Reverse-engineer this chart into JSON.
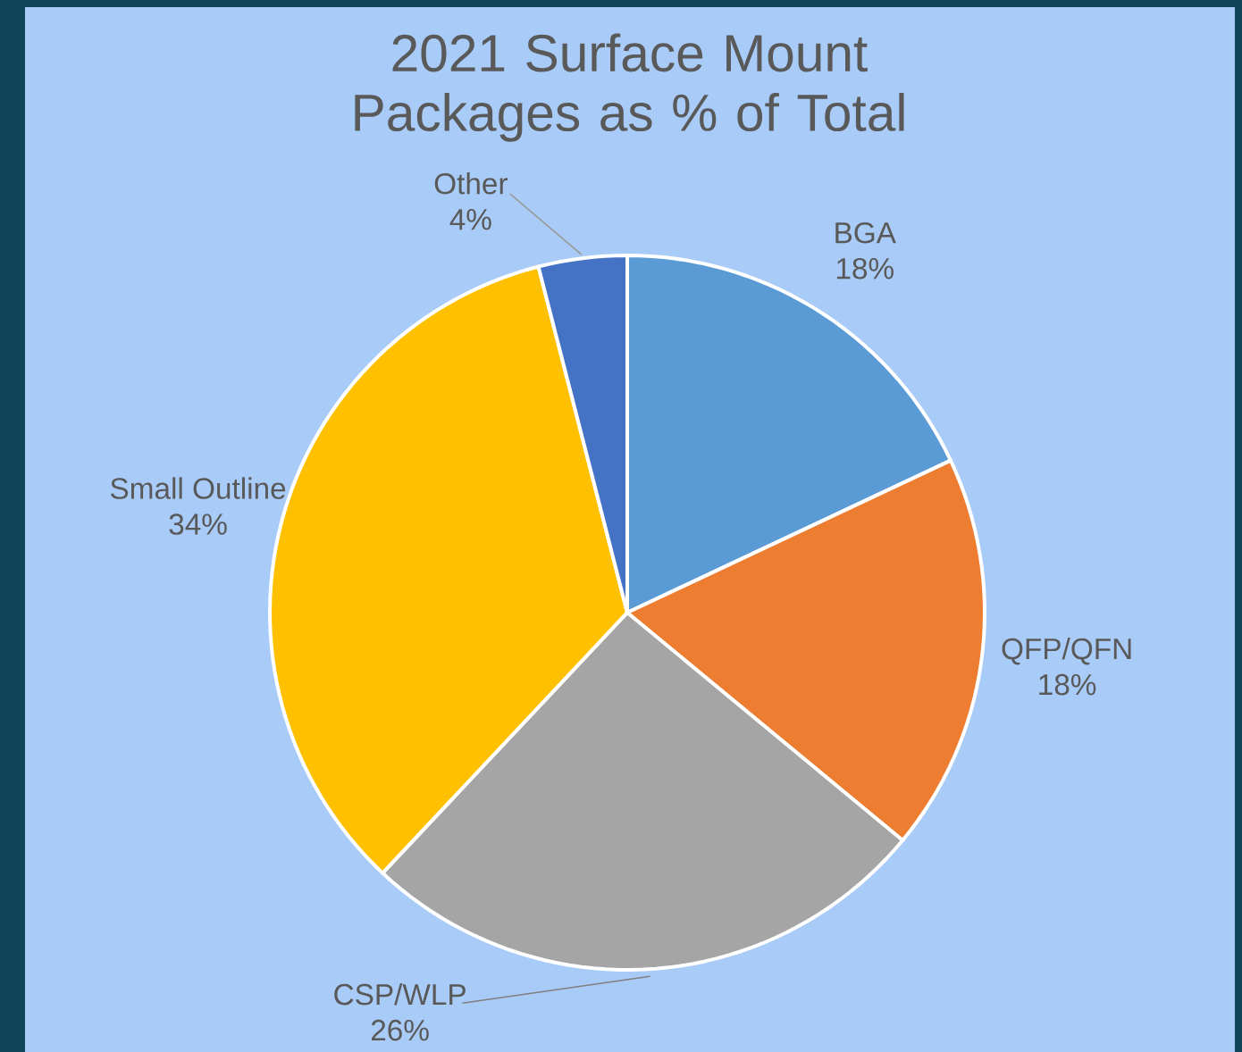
{
  "chart_data": {
    "type": "pie",
    "title": "2021 Surface Mount Packages as % of Total",
    "categories": [
      "BGA",
      "QFP/QFN",
      "CSP/WLP",
      "Small Outline",
      "Other"
    ],
    "values": [
      18,
      18,
      26,
      34,
      4
    ],
    "value_labels": [
      "18%",
      "18%",
      "26%",
      "34%",
      "4%"
    ],
    "colors": [
      "#5b9bd5",
      "#ed7d31",
      "#a5a5a5",
      "#ffc000",
      "#4472c4"
    ]
  }
}
